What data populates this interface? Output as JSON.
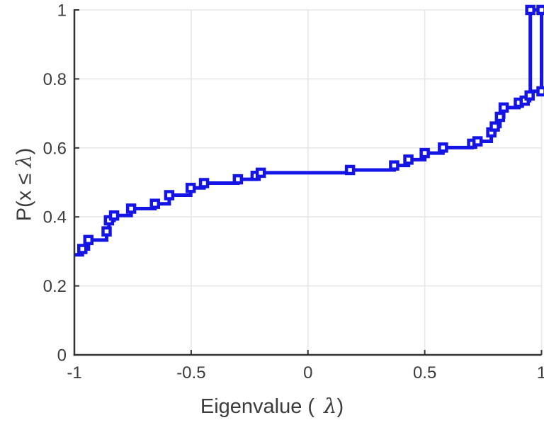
{
  "chart": {
    "xlabel": {
      "pre": "Eigenvalue (",
      "sym": "λ",
      "post": ")"
    },
    "ylabel": {
      "pre": "P(x ≤ ",
      "sym": "λ",
      "post": ")"
    }
  },
  "chart_data": {
    "type": "line",
    "subtype": "ecdf-stairs-with-square-markers",
    "title": "",
    "xlabel": "Eigenvalue ( λ)",
    "ylabel": "P(x ≤ λ)",
    "xlim": [
      -1,
      1
    ],
    "ylim": [
      0,
      1
    ],
    "grid": true,
    "x_ticks": {
      "values": [
        -1,
        -0.5,
        0,
        0.5,
        1
      ],
      "labels": [
        "-1",
        "-0.5",
        "0",
        "0.5",
        "1"
      ]
    },
    "y_ticks": {
      "values": [
        0,
        0.2,
        0.4,
        0.6,
        0.8,
        1
      ],
      "labels": [
        "0",
        "0.2",
        "0.4",
        "0.6",
        "0.8",
        "1"
      ]
    },
    "colors": {
      "line": "#1414e6",
      "axis": "#333333",
      "grid": "#e7e7e7",
      "tick_text": "#3c3c3c",
      "marker_fill": "#ffffff"
    },
    "line_width": 5,
    "marker": "square",
    "marker_size": 10,
    "marker_edge_width": 4.5,
    "series": [
      {
        "name": "eigenvalue-ecdf",
        "points": [
          [
            -1.0,
            0.29
          ],
          [
            -0.966,
            0.307
          ],
          [
            -0.94,
            0.333
          ],
          [
            -0.862,
            0.358
          ],
          [
            -0.852,
            0.39
          ],
          [
            -0.83,
            0.404
          ],
          [
            -0.757,
            0.424
          ],
          [
            -0.655,
            0.438
          ],
          [
            -0.594,
            0.463
          ],
          [
            -0.502,
            0.484
          ],
          [
            -0.445,
            0.498
          ],
          [
            -0.3,
            0.509
          ],
          [
            -0.224,
            0.519
          ],
          [
            -0.202,
            0.528
          ],
          [
            0.18,
            0.536
          ],
          [
            0.369,
            0.549
          ],
          [
            0.43,
            0.566
          ],
          [
            0.5,
            0.585
          ],
          [
            0.578,
            0.601
          ],
          [
            0.703,
            0.612
          ],
          [
            0.726,
            0.619
          ],
          [
            0.785,
            0.645
          ],
          [
            0.8,
            0.662
          ],
          [
            0.822,
            0.69
          ],
          [
            0.838,
            0.717
          ],
          [
            0.903,
            0.731
          ],
          [
            0.928,
            0.737
          ],
          [
            0.949,
            0.752
          ]
        ],
        "tail_vertices": [
          [
            0.952,
            0.752
          ],
          [
            0.952,
            1.0
          ],
          [
            1.0,
            1.0
          ],
          [
            1.0,
            0.764
          ],
          [
            0.95,
            0.764
          ]
        ],
        "extra_markers": [
          [
            0.952,
            1.0
          ],
          [
            1.0,
            1.0
          ],
          [
            1.0,
            0.764
          ]
        ]
      }
    ]
  }
}
